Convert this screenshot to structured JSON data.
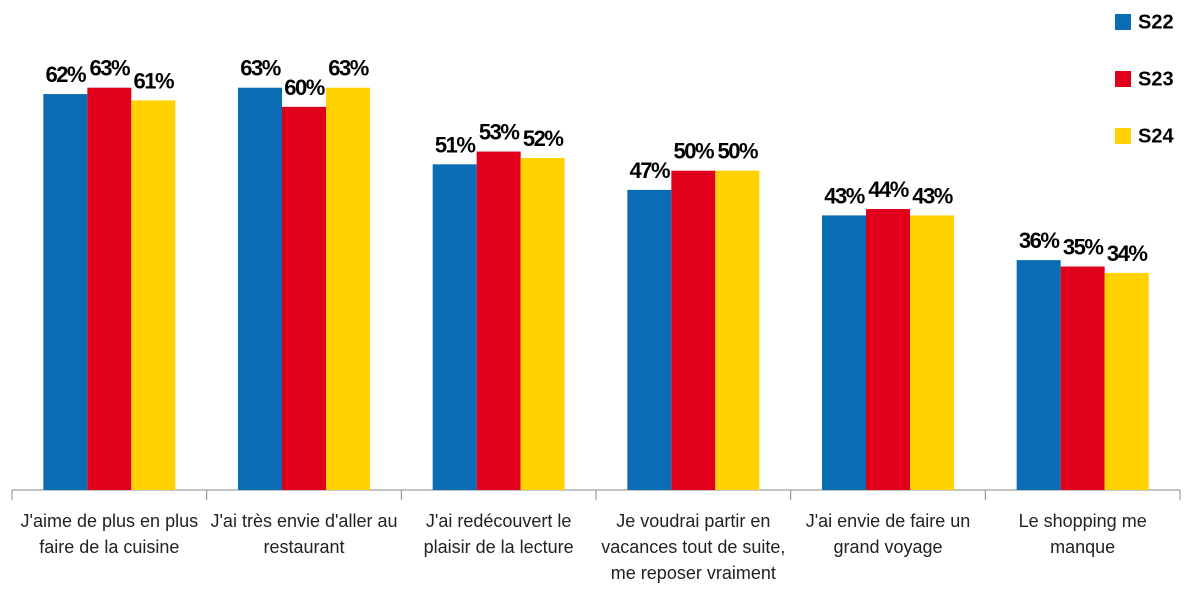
{
  "chart_data": {
    "type": "bar",
    "categories": [
      "J'aime de plus en plus faire de la cuisine",
      "J'ai très envie d'aller au restaurant",
      "J'ai redécouvert le plaisir de la lecture",
      "Je voudrai partir en vacances tout de suite, me reposer vraiment",
      "J'ai envie de faire un grand voyage",
      "Le shopping me manque"
    ],
    "series": [
      {
        "name": "S22",
        "color": "#0a6cb4",
        "values": [
          62,
          63,
          51,
          47,
          43,
          36
        ],
        "value_labels": [
          "62%",
          "63%",
          "51%",
          "47%",
          "43%",
          "36%"
        ]
      },
      {
        "name": "S23",
        "color": "#e0001b",
        "values": [
          63,
          60,
          53,
          50,
          44,
          35
        ],
        "value_labels": [
          "63%",
          "60%",
          "53%",
          "50%",
          "44%",
          "35%"
        ]
      },
      {
        "name": "S24",
        "color": "#ffd200",
        "values": [
          61,
          63,
          52,
          50,
          43,
          34
        ],
        "value_labels": [
          "61%",
          "63%",
          "52%",
          "50%",
          "43%",
          "34%"
        ]
      }
    ],
    "ylim": [
      0,
      70
    ],
    "legend": "top-right"
  }
}
